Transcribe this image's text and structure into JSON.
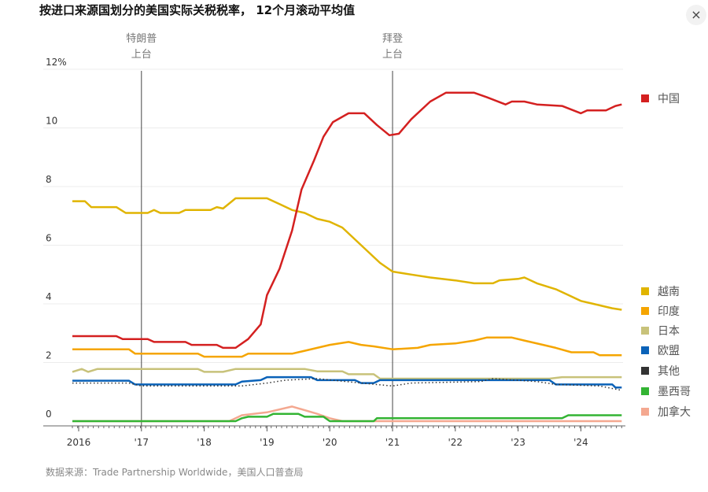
{
  "title": "按进口来源国划分的美国实际关税税率， 12个月滚动平均值",
  "close_label": "×",
  "source": "数据来源：Trade Partnership Worldwide，美国人口普查局",
  "chart_data": {
    "type": "line",
    "title": "按进口来源国划分的美国实际关税税率， 12个月滚动平均值",
    "ylabel": "",
    "xlabel": "",
    "xlim": [
      2015.9,
      2024.65
    ],
    "ylim": [
      0,
      12
    ],
    "y_ticks": [
      {
        "v": 0,
        "label": "0"
      },
      {
        "v": 2,
        "label": "2"
      },
      {
        "v": 4,
        "label": "4"
      },
      {
        "v": 6,
        "label": "6"
      },
      {
        "v": 8,
        "label": "8"
      },
      {
        "v": 10,
        "label": "10"
      },
      {
        "v": 12,
        "label": "12%"
      }
    ],
    "x_ticks": [
      {
        "v": 2016,
        "label": "2016"
      },
      {
        "v": 2017,
        "label": "'17"
      },
      {
        "v": 2018,
        "label": "'18"
      },
      {
        "v": 2019,
        "label": "'19"
      },
      {
        "v": 2020,
        "label": "'20"
      },
      {
        "v": 2021,
        "label": "'21"
      },
      {
        "v": 2022,
        "label": "'22"
      },
      {
        "v": 2023,
        "label": "'23"
      },
      {
        "v": 2024,
        "label": "'24"
      }
    ],
    "grid": true,
    "legend_placement": "right",
    "annotations": [
      {
        "x": 2017.0,
        "label_line1": "特朗普",
        "label_line2": "上台"
      },
      {
        "x": 2021.0,
        "label_line1": "拜登",
        "label_line2": "上台"
      }
    ],
    "series": [
      {
        "name": "中国",
        "color": "#d42020",
        "x": [
          2015.9,
          2016.6,
          2016.7,
          2017.1,
          2017.2,
          2017.7,
          2017.8,
          2018.2,
          2018.3,
          2018.5,
          2018.7,
          2018.9,
          2019.0,
          2019.2,
          2019.4,
          2019.55,
          2019.75,
          2019.9,
          2020.05,
          2020.3,
          2020.55,
          2020.75,
          2020.95,
          2021.1,
          2021.3,
          2021.6,
          2021.85,
          2022.3,
          2022.5,
          2022.8,
          2022.9,
          2023.1,
          2023.3,
          2023.7,
          2024.0,
          2024.1,
          2024.4,
          2024.55,
          2024.65
        ],
        "y": [
          2.9,
          2.9,
          2.8,
          2.8,
          2.7,
          2.7,
          2.6,
          2.6,
          2.5,
          2.5,
          2.8,
          3.3,
          4.3,
          5.2,
          6.5,
          7.9,
          8.9,
          9.7,
          10.2,
          10.5,
          10.5,
          10.1,
          9.75,
          9.8,
          10.3,
          10.9,
          11.2,
          11.2,
          11.05,
          10.8,
          10.9,
          10.9,
          10.8,
          10.75,
          10.5,
          10.6,
          10.6,
          10.75,
          10.8
        ]
      },
      {
        "name": "越南",
        "color": "#e0b400",
        "x": [
          2015.9,
          2016.1,
          2016.2,
          2016.6,
          2016.75,
          2017.1,
          2017.2,
          2017.3,
          2017.6,
          2017.7,
          2018.1,
          2018.2,
          2018.3,
          2018.5,
          2019.0,
          2019.2,
          2019.4,
          2019.6,
          2019.8,
          2020.0,
          2020.2,
          2020.4,
          2020.6,
          2020.8,
          2021.0,
          2021.3,
          2021.6,
          2022.0,
          2022.3,
          2022.6,
          2022.7,
          2023.0,
          2023.1,
          2023.3,
          2023.6,
          2023.8,
          2024.0,
          2024.2,
          2024.5,
          2024.65
        ],
        "y": [
          7.5,
          7.5,
          7.3,
          7.3,
          7.1,
          7.1,
          7.2,
          7.1,
          7.1,
          7.2,
          7.2,
          7.3,
          7.25,
          7.6,
          7.6,
          7.4,
          7.2,
          7.1,
          6.9,
          6.8,
          6.6,
          6.2,
          5.8,
          5.4,
          5.1,
          5.0,
          4.9,
          4.8,
          4.7,
          4.7,
          4.8,
          4.85,
          4.9,
          4.7,
          4.5,
          4.3,
          4.1,
          4.0,
          3.85,
          3.8
        ]
      },
      {
        "name": "印度",
        "color": "#f5a500",
        "x": [
          2015.9,
          2016.8,
          2016.9,
          2017.9,
          2018.0,
          2018.6,
          2018.7,
          2019.4,
          2019.6,
          2019.8,
          2020.0,
          2020.3,
          2020.5,
          2020.7,
          2021.0,
          2021.4,
          2021.6,
          2022.0,
          2022.3,
          2022.5,
          2022.9,
          2023.1,
          2023.4,
          2023.6,
          2023.85,
          2024.2,
          2024.3,
          2024.65
        ],
        "y": [
          2.45,
          2.45,
          2.3,
          2.3,
          2.2,
          2.2,
          2.3,
          2.3,
          2.4,
          2.5,
          2.6,
          2.7,
          2.6,
          2.55,
          2.45,
          2.5,
          2.6,
          2.65,
          2.75,
          2.85,
          2.85,
          2.75,
          2.6,
          2.5,
          2.35,
          2.35,
          2.25,
          2.25
        ]
      },
      {
        "name": "日本",
        "color": "#c8c27a",
        "x": [
          2015.9,
          2016.05,
          2016.15,
          2016.3,
          2017.9,
          2018.0,
          2018.3,
          2018.5,
          2019.6,
          2019.8,
          2020.2,
          2020.3,
          2020.7,
          2020.8,
          2023.5,
          2023.7,
          2024.65
        ],
        "y": [
          1.68,
          1.78,
          1.68,
          1.78,
          1.78,
          1.68,
          1.68,
          1.78,
          1.78,
          1.7,
          1.7,
          1.6,
          1.6,
          1.45,
          1.45,
          1.5,
          1.5
        ]
      },
      {
        "name": "欧盟",
        "color": "#0a62b8",
        "x": [
          2015.9,
          2016.8,
          2016.9,
          2018.5,
          2018.6,
          2018.9,
          2019.0,
          2019.7,
          2019.8,
          2020.4,
          2020.5,
          2020.7,
          2020.8,
          2023.5,
          2023.6,
          2024.5,
          2024.55,
          2024.65
        ],
        "y": [
          1.38,
          1.38,
          1.25,
          1.25,
          1.35,
          1.4,
          1.5,
          1.5,
          1.4,
          1.4,
          1.3,
          1.3,
          1.4,
          1.4,
          1.25,
          1.25,
          1.15,
          1.15
        ]
      },
      {
        "name": "其他",
        "color": "#333333",
        "x": [
          2015.9,
          2016.8,
          2017.0,
          2018.6,
          2019.0,
          2019.3,
          2019.8,
          2020.5,
          2021.0,
          2021.3,
          2022.4,
          2022.6,
          2023.3,
          2023.6,
          2024.3,
          2024.65
        ],
        "y": [
          1.3,
          1.3,
          1.2,
          1.2,
          1.3,
          1.4,
          1.45,
          1.3,
          1.2,
          1.3,
          1.35,
          1.45,
          1.35,
          1.25,
          1.2,
          1.05
        ]
      },
      {
        "name": "墨西哥",
        "color": "#33b433",
        "x": [
          2015.9,
          2018.5,
          2018.6,
          2018.7,
          2019.0,
          2019.1,
          2019.5,
          2019.6,
          2019.9,
          2020.0,
          2020.7,
          2020.75,
          2023.7,
          2023.8,
          2024.65
        ],
        "y": [
          0,
          0,
          0.1,
          0.15,
          0.15,
          0.25,
          0.25,
          0.15,
          0.15,
          0,
          0,
          0.1,
          0.1,
          0.2,
          0.2
        ]
      },
      {
        "name": "加拿大",
        "color": "#f4a890",
        "x": [
          2015.9,
          2018.4,
          2018.6,
          2019.0,
          2019.4,
          2019.8,
          2020.0,
          2020.2,
          2024.65
        ],
        "y": [
          0,
          0,
          0.2,
          0.3,
          0.5,
          0.25,
          0.1,
          0,
          0
        ]
      }
    ]
  }
}
